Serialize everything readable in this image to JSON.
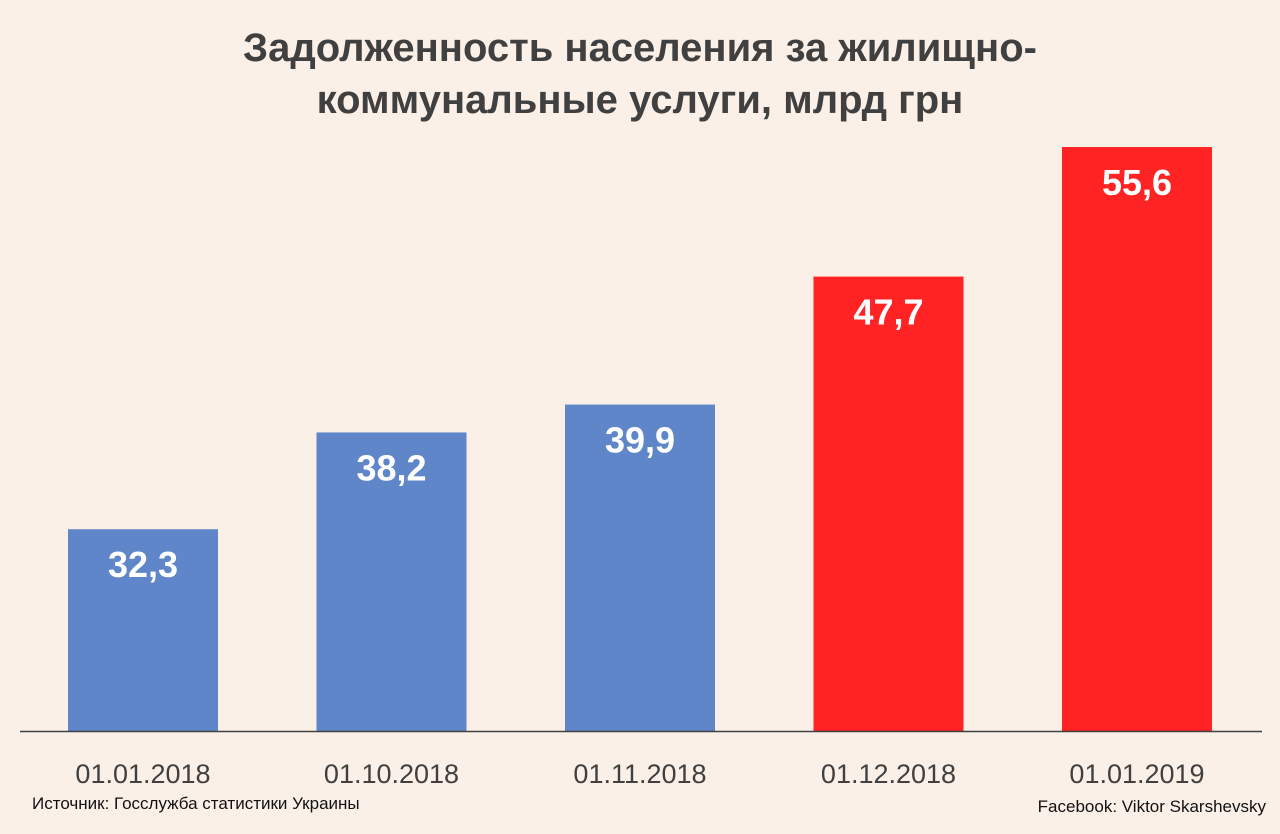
{
  "chart_data": {
    "type": "bar",
    "title": "Задолженность населения за жилищно-коммунальные услуги, млрд грн",
    "title_lines": [
      "Задолженность населения за жилищно-",
      "коммунальные услуги, млрд грн"
    ],
    "categories": [
      "01.01.2018",
      "01.10.2018",
      "01.11.2018",
      "01.12.2018",
      "01.01.2019"
    ],
    "values": [
      32.3,
      38.2,
      39.9,
      47.7,
      55.6
    ],
    "value_labels": [
      "32,3",
      "38,2",
      "39,9",
      "47,7",
      "55,6"
    ],
    "bar_colors": [
      "#5f86c8",
      "#5f86c8",
      "#5f86c8",
      "#ff2323",
      "#ff2323"
    ],
    "xlabel": "",
    "ylabel": "",
    "ylim": [
      20,
      55.6
    ],
    "grid": false,
    "legend": "none"
  },
  "footer": {
    "source": "Источник: Госслужба статистики Украины",
    "credit": "Facebook: Viktor Skarshevsky"
  }
}
